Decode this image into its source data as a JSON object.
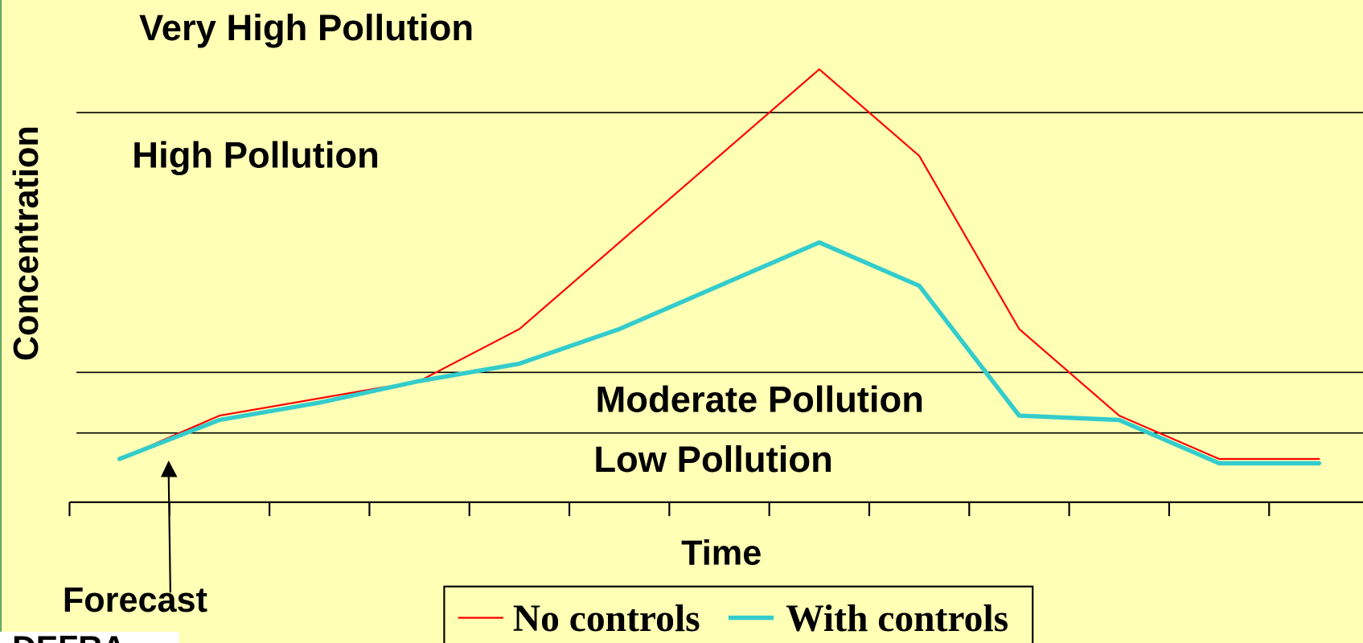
{
  "chart_data": {
    "type": "line",
    "y_label": "Concentration",
    "x_label": "Time",
    "annotations": [
      "Very High Pollution",
      "High Pollution",
      "Moderate Pollution",
      "Low Pollution",
      "Forecast",
      "DEFRA"
    ],
    "thresholds": [
      90,
      30,
      16
    ],
    "categories": [
      null,
      null,
      null,
      null,
      null,
      null,
      null,
      null,
      null,
      null,
      null,
      null,
      null
    ],
    "series": [
      {
        "name": "No controls",
        "color": "#ff0000",
        "values": [
          10,
          20,
          24,
          28,
          40,
          60,
          80,
          100,
          80,
          40,
          20,
          10,
          10
        ]
      },
      {
        "name": "With controls",
        "color": "#33cccc",
        "values": [
          10,
          19,
          23,
          28,
          32,
          40,
          50,
          60,
          50,
          20,
          19,
          9,
          9
        ]
      }
    ],
    "ylim": [
      0,
      116
    ]
  }
}
